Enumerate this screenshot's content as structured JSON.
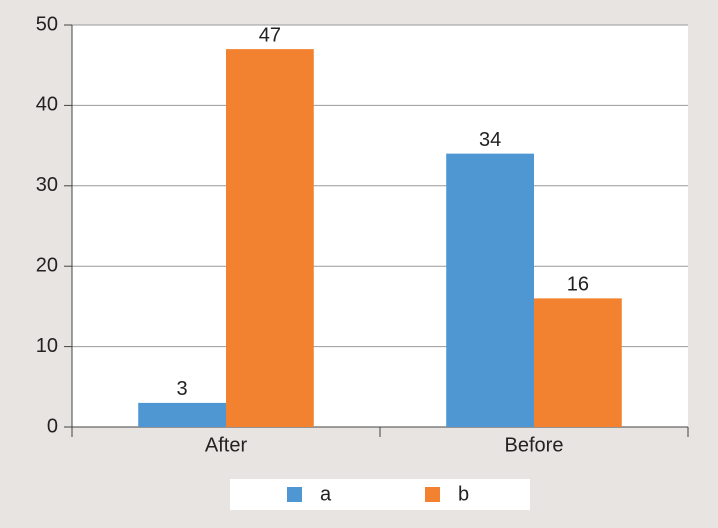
{
  "chart_data": {
    "type": "bar",
    "categories": [
      "After",
      "Before"
    ],
    "series": [
      {
        "name": "a",
        "color": "#4e97d3",
        "values": [
          3,
          34
        ]
      },
      {
        "name": "b",
        "color": "#f28230",
        "values": [
          47,
          16
        ]
      }
    ],
    "ylim": [
      0,
      50
    ],
    "yticks": [
      0,
      10,
      20,
      30,
      40,
      50
    ],
    "grid": true,
    "legend": "bottom"
  }
}
